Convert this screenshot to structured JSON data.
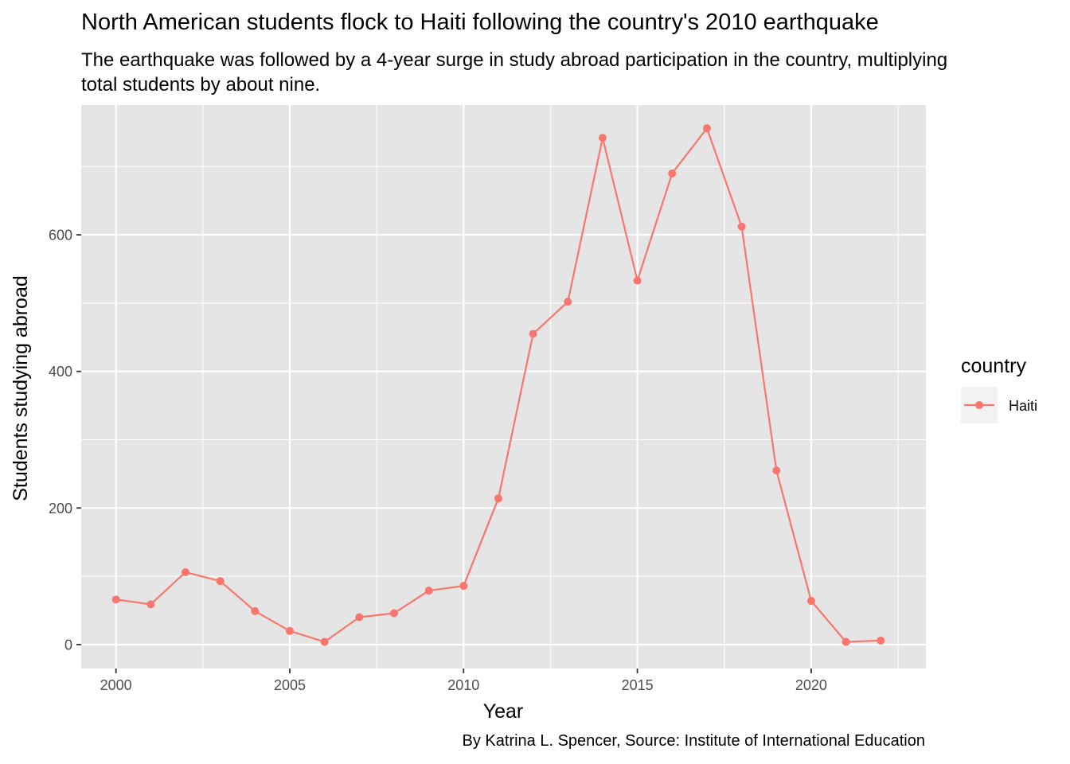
{
  "title": "North American students flock to Haiti following the country's 2010 earthquake",
  "subtitle": "The earthquake was followed by a 4-year surge in study abroad participation in the country, multiplying total students by about nine.",
  "caption": "By Katrina L. Spencer, Source: Institute of International Education",
  "chart_data": {
    "type": "line",
    "xlabel": "Year",
    "ylabel": "Students studying abroad",
    "xlim": [
      1999,
      2023.3
    ],
    "ylim": [
      -35,
      790
    ],
    "x_ticks": [
      2000,
      2005,
      2010,
      2015,
      2020
    ],
    "y_ticks": [
      0,
      200,
      400,
      600
    ],
    "grid": true,
    "legend": {
      "title": "country",
      "placement": "right"
    },
    "series": [
      {
        "name": "Haiti",
        "color": "#F8766D",
        "x": [
          2000,
          2001,
          2002,
          2003,
          2004,
          2005,
          2006,
          2007,
          2008,
          2009,
          2010,
          2011,
          2012,
          2013,
          2014,
          2015,
          2016,
          2017,
          2018,
          2019,
          2020,
          2021,
          2022
        ],
        "y": [
          66,
          59,
          106,
          93,
          49,
          20,
          4,
          40,
          46,
          79,
          86,
          214,
          455,
          502,
          742,
          533,
          690,
          756,
          612,
          255,
          64,
          4,
          6
        ]
      }
    ]
  }
}
